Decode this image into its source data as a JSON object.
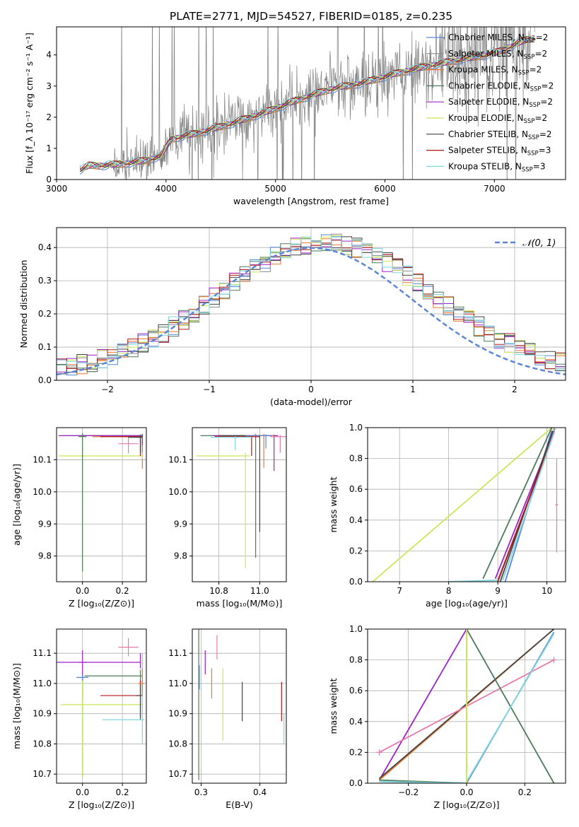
{
  "figure_title": "PLATE=2771, MJD=54527, FIBERID=0185, z=0.235",
  "colors": {
    "chabrier_miles": "#5a86d8",
    "salpeter_miles": "#8c8c8c",
    "kroupa_miles": "#f0762a",
    "chabrier_elodie": "#4d7a5a",
    "salpeter_elodie": "#a020c8",
    "kroupa_elodie": "#c8e85a",
    "chabrier_stelib": "#444444",
    "salpeter_stelib": "#b01818",
    "kroupa_stelib": "#7fd7e0",
    "pink": "#e87aa8",
    "data": "#808080",
    "normal": "#5a86d8"
  },
  "chart_data": [
    {
      "id": "spectrum",
      "type": "line",
      "xlabel": "wavelength [Angstrom, rest frame]",
      "ylabel": "Flux [f_λ 10⁻¹⁷ erg cm⁻² s⁻¹ A⁻¹]",
      "xlim": [
        3000,
        7650
      ],
      "ylim": [
        0,
        4.9
      ],
      "xticks": [
        "3000",
        "4000",
        "5000",
        "6000",
        "7000"
      ],
      "yticks": [
        "0",
        "1",
        "2",
        "3",
        "4"
      ],
      "legend_position": "top-right",
      "legend": [
        "Chabrier MILES, N_SSP=2",
        "Salpeter MILES, N_SSP=2",
        "Kroupa MILES, N_SSP=2",
        "Chabrier ELODIE, N_SSP=2",
        "Salpeter ELODIE, N_SSP=2",
        "Kroupa ELODIE, N_SSP=2",
        "Chabrier STELIB, N_SSP=2",
        "Salpeter STELIB, N_SSP=3",
        "Kroupa STELIB, N_SSP=3"
      ],
      "model_continuum": {
        "x": [
          3220,
          3300,
          3450,
          3600,
          3800,
          3950,
          4050,
          4300,
          4600,
          4900,
          5200,
          5500,
          5800,
          6100,
          6400,
          6700,
          7000,
          7300,
          7370
        ],
        "y": [
          0.3,
          0.45,
          0.45,
          0.5,
          0.6,
          0.75,
          1.3,
          1.5,
          1.8,
          2.15,
          2.55,
          2.9,
          3.1,
          3.4,
          3.65,
          3.85,
          4.05,
          4.5,
          4.55
        ]
      }
    },
    {
      "id": "residuals",
      "type": "area",
      "xlabel": "(data-model)/error",
      "ylabel": "Normed distribution",
      "xlim": [
        -2.5,
        2.5
      ],
      "ylim": [
        0,
        0.46
      ],
      "xticks": [
        "−2",
        "−1",
        "0",
        "1",
        "2"
      ],
      "yticks": [
        "0.0",
        "0.1",
        "0.2",
        "0.3",
        "0.4"
      ],
      "grid": true,
      "legend": [
        "𝒩(0, 1)"
      ],
      "legend_position": "top-right",
      "bin_width": 0.1
    },
    {
      "id": "age_vs_Z",
      "type": "scatter",
      "xlabel": "Z [log₁₀(Z/Z⊙)]",
      "ylabel": "age  [log₁₀(age/yr)]",
      "xlim": [
        -0.13,
        0.32
      ],
      "ylim": [
        9.72,
        10.2
      ],
      "xticks": [
        "0.0",
        "0.2"
      ],
      "yticks": [
        "9.8",
        "9.9",
        "10.0",
        "10.1"
      ],
      "grid": true
    },
    {
      "id": "age_vs_mass",
      "type": "scatter",
      "xlabel": "mass [log₁₀(M/M⊙)]",
      "xlim": [
        10.67,
        11.13
      ],
      "ylim": [
        9.72,
        10.2
      ],
      "xticks": [
        "10.8",
        "11.0"
      ],
      "yticks": [
        "9.8",
        "9.9",
        "10.0",
        "10.1"
      ],
      "grid": true
    },
    {
      "id": "weight_vs_age",
      "type": "line",
      "xlabel": "age  [log₁₀(age/yr)]",
      "ylabel": "mass weight",
      "xlim": [
        6.35,
        10.38
      ],
      "ylim": [
        0,
        1.0
      ],
      "xticks": [
        "7",
        "8",
        "9",
        "10"
      ],
      "yticks": [
        "0.0",
        "0.2",
        "0.4",
        "0.6",
        "0.8",
        "1.0"
      ],
      "grid": true
    },
    {
      "id": "mass_vs_Z",
      "type": "scatter",
      "xlabel": "Z [log₁₀(Z/Z⊙)]",
      "ylabel": "mass [log₁₀(M/M⊙)]",
      "xlim": [
        -0.13,
        0.32
      ],
      "ylim": [
        10.67,
        11.18
      ],
      "xticks": [
        "0.0",
        "0.2"
      ],
      "yticks": [
        "10.7",
        "10.8",
        "10.9",
        "11.0",
        "11.1"
      ],
      "grid": true
    },
    {
      "id": "mass_vs_ebv",
      "type": "scatter",
      "xlabel": "E(B-V)",
      "xlim": [
        0.285,
        0.445
      ],
      "ylim": [
        10.67,
        11.18
      ],
      "xticks": [
        "0.3",
        "0.4"
      ],
      "yticks": [
        "10.7",
        "10.8",
        "10.9",
        "11.0",
        "11.1"
      ],
      "grid": true
    },
    {
      "id": "weight_vs_Z",
      "type": "line",
      "xlabel": "Z [log₁₀(Z/Z⊙)]",
      "ylabel": "mass weight",
      "xlim": [
        -0.34,
        0.34
      ],
      "ylim": [
        0,
        1.0
      ],
      "xticks": [
        "−0.2",
        "0.0",
        "0.2"
      ],
      "yticks": [
        "0.0",
        "0.2",
        "0.4",
        "0.6",
        "0.8",
        "1.0"
      ],
      "grid": true
    }
  ]
}
